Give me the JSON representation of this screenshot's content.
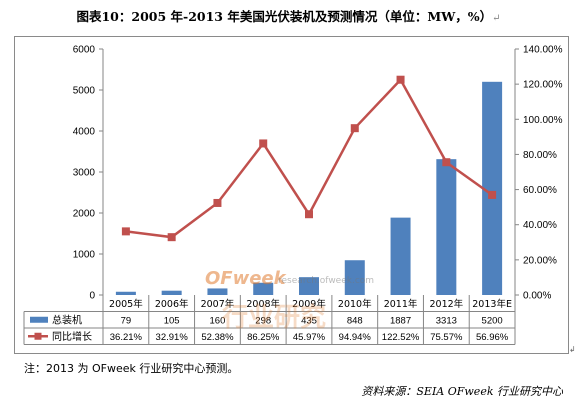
{
  "title": "图表10：2005 年-2013 年美国光伏装机及预测情况（单位：MW，%）",
  "chart_data": {
    "type": "bar+line",
    "categories": [
      "2005年",
      "2006年",
      "2007年",
      "2008年",
      "2009年",
      "2010年",
      "2011年",
      "2012年",
      "2013年E"
    ],
    "series": [
      {
        "name": "总装机",
        "type": "bar",
        "axis": "left",
        "color": "#4f81bd",
        "values": [
          79,
          105,
          160,
          298,
          435,
          848,
          1887,
          3313,
          5200
        ],
        "labels": [
          "79",
          "105",
          "160",
          "298",
          "435",
          "848",
          "1887",
          "3313",
          "5200"
        ]
      },
      {
        "name": "同比增长",
        "type": "line",
        "axis": "right",
        "color": "#c0504d",
        "values": [
          36.21,
          32.91,
          52.38,
          86.25,
          45.97,
          94.94,
          122.52,
          75.57,
          56.96
        ],
        "labels": [
          "36.21%",
          "32.91%",
          "52.38%",
          "86.25%",
          "45.97%",
          "94.94%",
          "122.52%",
          "75.57%",
          "56.96%"
        ]
      }
    ],
    "y_left": {
      "min": 0,
      "max": 6000,
      "ticks": [
        "0",
        "1000",
        "2000",
        "3000",
        "4000",
        "5000",
        "6000"
      ]
    },
    "y_right": {
      "min": 0,
      "max": 140,
      "ticks": [
        "0.00%",
        "20.00%",
        "40.00%",
        "60.00%",
        "80.00%",
        "100.00%",
        "120.00%",
        "140.00%"
      ]
    },
    "legend": "data-table",
    "grid": false
  },
  "watermark": {
    "brand": "OFweek",
    "sub": "research.ofweek.com",
    "overlay": "行业研究"
  },
  "footnote": "注：2013 为 OFweek 行业研究中心预测。",
  "source": "资料来源：SEIA OFweek 行业研究中心"
}
